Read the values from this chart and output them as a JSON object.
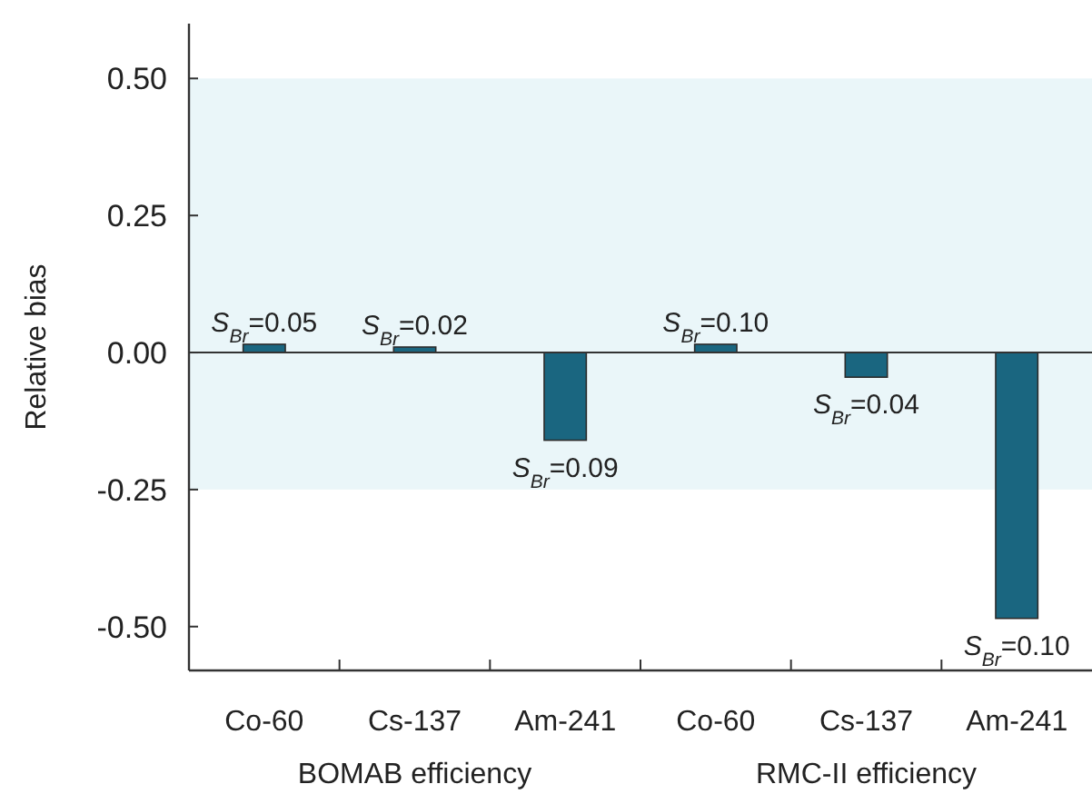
{
  "chart_data": {
    "type": "bar",
    "ylabel": "Relative bias",
    "categories": [
      "Co-60",
      "Cs-137",
      "Am-241",
      "Co-60",
      "Cs-137",
      "Am-241"
    ],
    "values": [
      0.015,
      0.01,
      -0.16,
      0.015,
      -0.045,
      -0.485
    ],
    "color": "#1a6680",
    "ylim": [
      -0.58,
      0.6
    ],
    "yticks": [
      {
        "value": -0.5,
        "label": "-0.50"
      },
      {
        "value": -0.25,
        "label": "-0.25"
      },
      {
        "value": 0,
        "label": "0.00"
      },
      {
        "value": 0.25,
        "label": "0.25"
      },
      {
        "value": 0.5,
        "label": "0.50"
      }
    ],
    "bands": [
      {
        "axis": "y",
        "from": -0.25,
        "to": 0.5,
        "color": "#eaf6f9"
      }
    ],
    "ref_lines": [
      {
        "axis": "y",
        "value": 0,
        "color": "#333333"
      }
    ],
    "annotations": [
      "S$_{Br}$=0.05",
      "S$_{Br}$=0.02",
      "S$_{Br}$=0.09",
      "S$_{Br}$=0.10",
      "S$_{Br}$=0.04",
      "S$_{Br}$=0.10",
      "BOMAB efficiency",
      "RMC-II efficiency"
    ]
  }
}
